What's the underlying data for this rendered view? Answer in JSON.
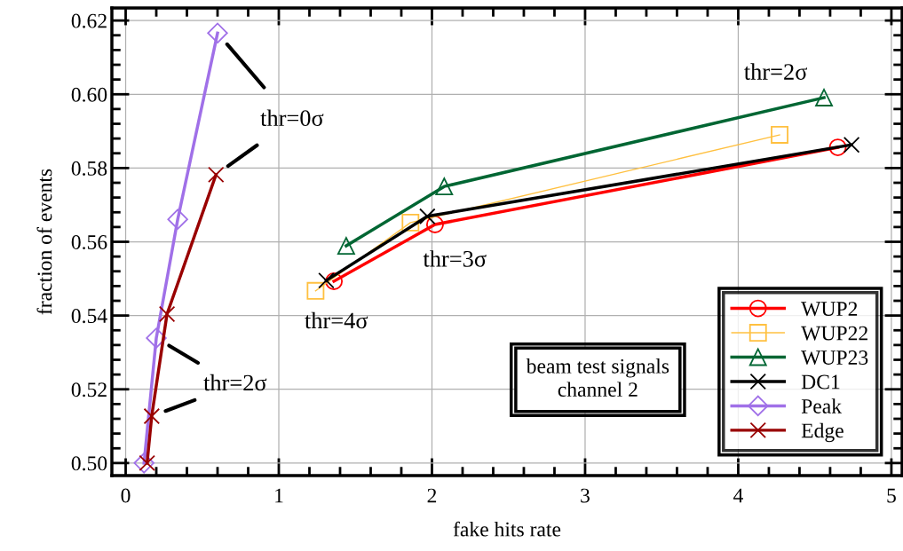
{
  "chart_data": {
    "type": "line",
    "xlabel": "fake hits rate",
    "ylabel": "fraction of events",
    "xlim": [
      -0.09,
      5.07
    ],
    "ylim": [
      0.4966,
      0.6234
    ],
    "xticks": [
      0,
      1,
      2,
      3,
      4,
      5
    ],
    "yticks": [
      {
        "value": 0.5,
        "label": "0.50"
      },
      {
        "value": 0.52,
        "label": "0.52"
      },
      {
        "value": 0.54,
        "label": "0.54"
      },
      {
        "value": 0.56,
        "label": "0.56"
      },
      {
        "value": 0.58,
        "label": "0.58"
      },
      {
        "value": 0.6,
        "label": "0.60"
      },
      {
        "value": 0.62,
        "label": "0.62"
      }
    ],
    "grid": true,
    "legend": "bottom right",
    "series": [
      {
        "name": "WUP2",
        "color": "#ff0000",
        "marker": "circle",
        "x": [
          1.36,
          2.02,
          4.65
        ],
        "values": [
          0.5493,
          0.5647,
          0.5856
        ]
      },
      {
        "name": "WUP22",
        "color": "#ffc040",
        "marker": "square",
        "x": [
          1.24,
          1.86,
          4.27
        ],
        "values": [
          0.5467,
          0.5652,
          0.589
        ]
      },
      {
        "name": "WUP23",
        "color": "#006633",
        "marker": "triangle",
        "x": [
          1.44,
          2.08,
          4.56
        ],
        "values": [
          0.5589,
          0.575,
          0.5991
        ]
      },
      {
        "name": "DC1",
        "color": "#000000",
        "marker": "cross",
        "x": [
          1.31,
          1.97,
          4.74
        ],
        "values": [
          0.5495,
          0.5669,
          0.5863
        ]
      },
      {
        "name": "Peak",
        "color": "#a070e8",
        "marker": "diamond",
        "x": [
          0.12,
          0.2,
          0.34,
          0.6
        ],
        "values": [
          0.5,
          0.5339,
          0.5661,
          0.6166
        ]
      },
      {
        "name": "Edge",
        "color": "#990000",
        "marker": "cross",
        "x": [
          0.14,
          0.17,
          0.27,
          0.59
        ],
        "values": [
          0.5,
          0.5127,
          0.5404,
          0.5782
        ]
      }
    ],
    "annotations": [
      "thr=0σ",
      "thr=2σ",
      "thr=4σ",
      "thr=3σ",
      "thr=2σ",
      "beam test signals\nchannel 2"
    ]
  }
}
